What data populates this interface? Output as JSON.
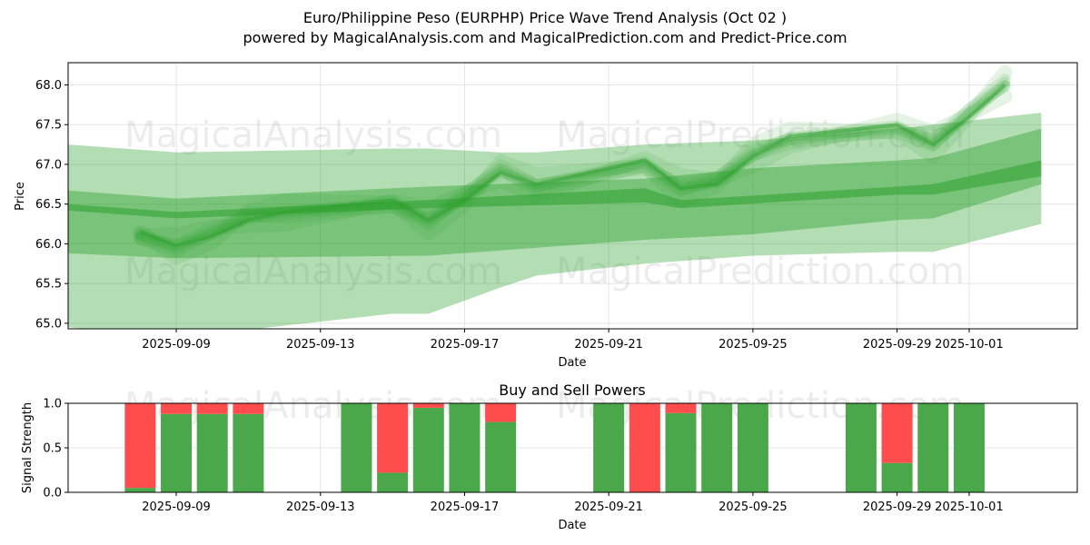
{
  "title_line1": "Euro/Philippine Peso (EURPHP) Price Wave Trend Analysis (Oct 02 )",
  "title_line2": "powered by MagicalAnalysis.com and MagicalPrediction.com and Predict-Price.com",
  "watermarks": [
    "MagicalAnalysis.com",
    "MagicalPrediction.com"
  ],
  "colors": {
    "green": "#2ca02c",
    "bar_green": "#4aa84a",
    "bar_red": "#ff4c4c"
  },
  "chart_data": [
    {
      "type": "area",
      "xlabel": "Date",
      "ylabel": "Price",
      "ylim": [
        64.93,
        68.28
      ],
      "x_range": [
        "2025-09-06",
        "2025-10-04"
      ],
      "grid": true,
      "x_ticks": [
        "2025-09-09",
        "2025-09-13",
        "2025-09-17",
        "2025-09-21",
        "2025-09-25",
        "2025-09-29",
        "2025-10-01"
      ],
      "y_ticks": [
        65.0,
        65.5,
        66.0,
        66.5,
        67.0,
        67.5,
        68.0
      ],
      "price_dates": [
        "2025-09-08",
        "2025-09-09",
        "2025-09-10",
        "2025-09-11",
        "2025-09-12",
        "2025-09-15",
        "2025-09-16",
        "2025-09-17",
        "2025-09-18",
        "2025-09-19",
        "2025-09-22",
        "2025-09-23",
        "2025-09-24",
        "2025-09-25",
        "2025-09-26",
        "2025-09-29",
        "2025-09-30",
        "2025-10-01",
        "2025-10-02"
      ],
      "price_values": [
        66.15,
        65.98,
        66.1,
        66.3,
        66.4,
        66.55,
        66.3,
        66.55,
        66.9,
        66.75,
        67.05,
        66.7,
        66.75,
        67.1,
        67.35,
        67.5,
        67.25,
        67.6,
        68.0
      ],
      "bands": [
        {
          "name": "wide outer band",
          "dates": [
            "2025-09-06",
            "2025-09-09",
            "2025-09-15",
            "2025-09-16",
            "2025-09-18",
            "2025-09-19",
            "2025-09-22",
            "2025-09-25",
            "2025-09-29",
            "2025-09-30",
            "2025-10-03"
          ],
          "upper": [
            67.25,
            67.15,
            67.2,
            67.2,
            67.15,
            67.15,
            67.25,
            67.3,
            67.45,
            67.5,
            67.65
          ],
          "lower": [
            64.95,
            64.82,
            65.12,
            65.12,
            65.45,
            65.6,
            65.75,
            65.85,
            65.9,
            65.9,
            66.25
          ]
        },
        {
          "name": "trend band",
          "dates": [
            "2025-09-06",
            "2025-09-09",
            "2025-09-16",
            "2025-09-22",
            "2025-09-25",
            "2025-09-29",
            "2025-09-30",
            "2025-10-03"
          ],
          "upper": [
            66.67,
            66.57,
            66.72,
            66.82,
            66.95,
            67.05,
            67.08,
            67.45
          ],
          "lower": [
            65.88,
            65.82,
            65.85,
            66.05,
            66.12,
            66.3,
            66.32,
            66.75
          ]
        },
        {
          "name": "core band",
          "dates": [
            "2025-09-06",
            "2025-09-09",
            "2025-09-16",
            "2025-09-22",
            "2025-09-23",
            "2025-09-29",
            "2025-09-30",
            "2025-10-03"
          ],
          "upper": [
            66.5,
            66.4,
            66.55,
            66.7,
            66.55,
            66.72,
            66.75,
            67.05
          ],
          "lower": [
            66.42,
            66.32,
            66.45,
            66.52,
            66.45,
            66.62,
            66.62,
            66.85
          ]
        }
      ]
    },
    {
      "type": "bar",
      "title": "Buy and Sell Powers",
      "xlabel": "Date",
      "ylabel": "Signal Strength",
      "ylim": [
        0,
        1.0
      ],
      "y_ticks": [
        0.0,
        0.5,
        1.0
      ],
      "x_ticks": [
        "2025-09-09",
        "2025-09-13",
        "2025-09-17",
        "2025-09-21",
        "2025-09-25",
        "2025-09-29",
        "2025-10-01"
      ],
      "categories": [
        "2025-09-08",
        "2025-09-09",
        "2025-09-10",
        "2025-09-11",
        "2025-09-14",
        "2025-09-15",
        "2025-09-16",
        "2025-09-17",
        "2025-09-18",
        "2025-09-21",
        "2025-09-22",
        "2025-09-23",
        "2025-09-24",
        "2025-09-25",
        "2025-09-28",
        "2025-09-29",
        "2025-09-30",
        "2025-10-01"
      ],
      "series": [
        {
          "name": "Buy",
          "values": [
            0.05,
            0.88,
            0.88,
            0.88,
            1.0,
            0.22,
            0.95,
            1.0,
            0.79,
            1.0,
            0.0,
            0.89,
            1.0,
            1.0,
            1.0,
            0.33,
            1.0,
            1.0
          ]
        },
        {
          "name": "Sell",
          "values": [
            0.95,
            0.12,
            0.12,
            0.12,
            0.0,
            0.78,
            0.05,
            0.0,
            0.21,
            0.0,
            1.0,
            0.11,
            0.0,
            0.0,
            0.0,
            0.67,
            0.0,
            0.0
          ]
        }
      ]
    }
  ]
}
